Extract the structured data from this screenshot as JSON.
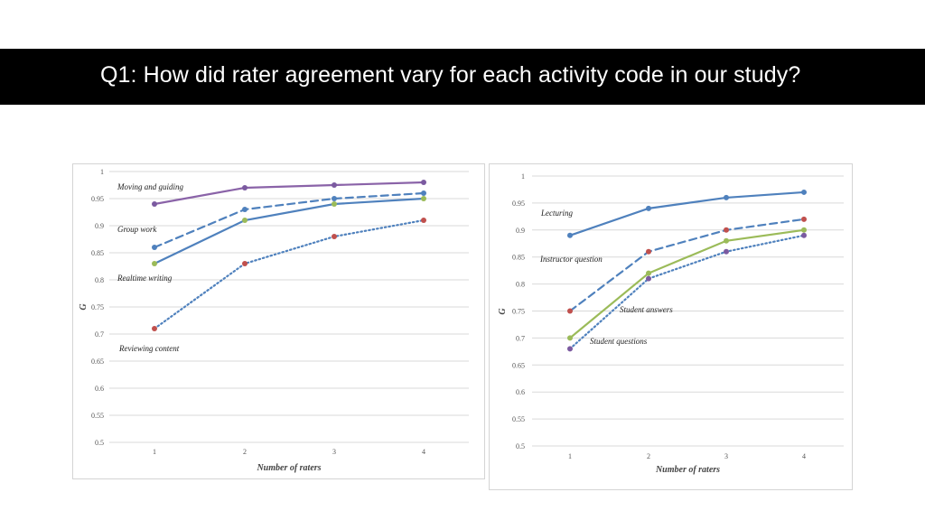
{
  "slide": {
    "title": "Q1: How did rater agreement vary for each activity code in our study?"
  },
  "chart_data": [
    {
      "type": "line",
      "x": [
        1,
        2,
        3,
        4
      ],
      "xlabel": "Number of raters",
      "ylabel": "G",
      "ylim": [
        0.5,
        1
      ],
      "yticks": [
        "1",
        "0.95",
        "0.9",
        "0.85",
        "0.8",
        "0.75",
        "0.7",
        "0.65",
        "0.6",
        "0.55",
        "0.5"
      ],
      "xticks": [
        "1",
        "2",
        "3",
        "4"
      ],
      "grid": true,
      "series": [
        {
          "name": "Moving and guiding",
          "values": [
            0.94,
            0.97,
            0.975,
            0.98
          ],
          "color": "#8a63a8",
          "dash": "solid",
          "marker_color": "#7b5aa0"
        },
        {
          "name": "Group work",
          "values": [
            0.86,
            0.93,
            0.95,
            0.96
          ],
          "color": "#4f81bd",
          "dash": "dashed",
          "marker_color": "#4f81bd"
        },
        {
          "name": "Realtime writing",
          "values": [
            0.83,
            0.91,
            0.94,
            0.95
          ],
          "color": "#4f81bd",
          "dash": "solid",
          "marker_color": "#9bbb59"
        },
        {
          "name": "Reviewing content",
          "values": [
            0.71,
            0.83,
            0.88,
            0.91
          ],
          "color": "#4f81bd",
          "dash": "dotted",
          "marker_color": "#c0504d"
        }
      ]
    },
    {
      "type": "line",
      "x": [
        1,
        2,
        3,
        4
      ],
      "xlabel": "Number of raters",
      "ylabel": "G",
      "ylim": [
        0.5,
        1
      ],
      "yticks": [
        "1",
        "0.95",
        "0.9",
        "0.85",
        "0.8",
        "0.75",
        "0.7",
        "0.65",
        "0.6",
        "0.55",
        "0.5"
      ],
      "xticks": [
        "1",
        "2",
        "3",
        "4"
      ],
      "grid": true,
      "series": [
        {
          "name": "Lecturing",
          "values": [
            0.89,
            0.94,
            0.96,
            0.97
          ],
          "color": "#4f81bd",
          "dash": "solid",
          "marker_color": "#4f81bd"
        },
        {
          "name": "Instructor question",
          "values": [
            0.75,
            0.86,
            0.9,
            0.92
          ],
          "color": "#4f81bd",
          "dash": "dashed",
          "marker_color": "#c0504d"
        },
        {
          "name": "Student answers",
          "values": [
            0.7,
            0.82,
            0.88,
            0.9
          ],
          "color": "#9bbb59",
          "dash": "solid",
          "marker_color": "#9bbb59"
        },
        {
          "name": "Student questions",
          "values": [
            0.68,
            0.81,
            0.86,
            0.89
          ],
          "color": "#4f81bd",
          "dash": "dotted",
          "marker_color": "#7b5aa0"
        }
      ]
    }
  ]
}
